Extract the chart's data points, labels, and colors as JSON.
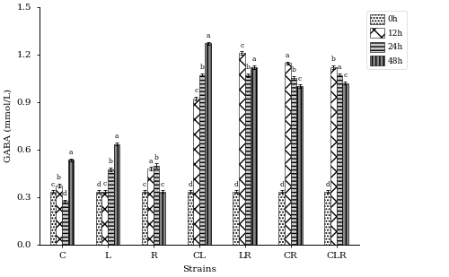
{
  "strains": [
    "C",
    "L",
    "R",
    "CL",
    "LR",
    "CR",
    "CLR"
  ],
  "times": [
    "0h",
    "12h",
    "24h",
    "48h"
  ],
  "values": {
    "C": [
      0.335,
      0.375,
      0.275,
      0.535
    ],
    "L": [
      0.335,
      0.335,
      0.475,
      0.635
    ],
    "R": [
      0.335,
      0.48,
      0.5,
      0.335
    ],
    "CL": [
      0.335,
      0.92,
      1.07,
      1.27
    ],
    "LR": [
      0.335,
      1.21,
      1.07,
      1.12
    ],
    "CR": [
      0.335,
      1.145,
      1.05,
      1.0
    ],
    "CLR": [
      0.335,
      1.12,
      1.07,
      1.02
    ]
  },
  "errors": {
    "C": [
      0.008,
      0.012,
      0.008,
      0.01
    ],
    "L": [
      0.008,
      0.01,
      0.012,
      0.01
    ],
    "R": [
      0.008,
      0.01,
      0.012,
      0.008
    ],
    "CL": [
      0.008,
      0.012,
      0.01,
      0.01
    ],
    "LR": [
      0.008,
      0.01,
      0.012,
      0.01
    ],
    "CR": [
      0.008,
      0.01,
      0.012,
      0.01
    ],
    "CLR": [
      0.008,
      0.01,
      0.01,
      0.01
    ]
  },
  "letters": {
    "C": [
      "c",
      "b",
      "d",
      "a"
    ],
    "L": [
      "d",
      "c",
      "b",
      "a"
    ],
    "R": [
      "c",
      "a",
      "b",
      "c"
    ],
    "CL": [
      "d",
      "c",
      "b",
      "a"
    ],
    "LR": [
      "d",
      "c",
      "b",
      "a"
    ],
    "CR": [
      "d",
      "a",
      "b",
      "c"
    ],
    "CLR": [
      "d",
      "b",
      "a",
      "c"
    ]
  },
  "ylabel": "GABA (mmol/L)",
  "xlabel": "Strains",
  "ylim": [
    0,
    1.5
  ],
  "yticks": [
    0,
    0.3,
    0.6,
    0.9,
    1.2,
    1.5
  ],
  "bar_width": 0.13,
  "background_color": "#ffffff",
  "letter_fontsize": 5.5,
  "axis_fontsize": 7.5,
  "legend_fontsize": 6.5,
  "figsize": [
    5.0,
    3.09
  ],
  "dpi": 100
}
